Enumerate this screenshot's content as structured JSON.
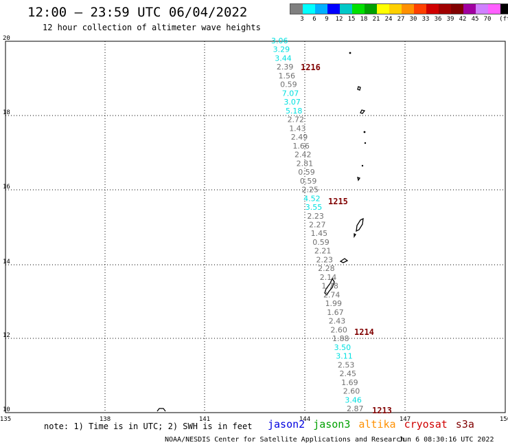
{
  "title": "12:00 – 23:59 UTC 06/04/2022",
  "subtitle": "12 hour collection of altimeter wave heights",
  "colorbar": {
    "colors": [
      "#808080",
      "#00ffff",
      "#00b0ff",
      "#0000ff",
      "#00c8c8",
      "#00e000",
      "#00a000",
      "#ffff00",
      "#ffd000",
      "#ff9000",
      "#ff4000",
      "#d00000",
      "#a00000",
      "#800000",
      "#a000a0",
      "#d080ff",
      "#ff60ff",
      "#000000"
    ],
    "labels": [
      "3",
      "6",
      "9",
      "12",
      "15",
      "18",
      "21",
      "24",
      "27",
      "30",
      "33",
      "36",
      "39",
      "42",
      "45",
      "70",
      "(ft)"
    ]
  },
  "axes": {
    "x_ticks": [
      "135",
      "138",
      "141",
      "144",
      "147",
      "150"
    ],
    "y_ticks": [
      "20",
      "18",
      "16",
      "14",
      "12",
      "10"
    ]
  },
  "track": {
    "swh_values": [
      {
        "v": "3.06",
        "c": "#00e0e0"
      },
      {
        "v": "3.29",
        "c": "#00e0e0"
      },
      {
        "v": "3.44",
        "c": "#00e0e0"
      },
      {
        "v": "2.39",
        "c": "#707070"
      },
      {
        "v": "1.56",
        "c": "#707070"
      },
      {
        "v": "0.59",
        "c": "#707070"
      },
      {
        "v": "7.07",
        "c": "#00e0e0"
      },
      {
        "v": "3.07",
        "c": "#00e0e0"
      },
      {
        "v": "5.18",
        "c": "#00e0e0"
      },
      {
        "v": "2.72",
        "c": "#707070"
      },
      {
        "v": "1.43",
        "c": "#707070"
      },
      {
        "v": "2.49",
        "c": "#707070"
      },
      {
        "v": "1.66",
        "c": "#707070"
      },
      {
        "v": "2.42",
        "c": "#707070"
      },
      {
        "v": "2.81",
        "c": "#707070"
      },
      {
        "v": "0.59",
        "c": "#707070"
      },
      {
        "v": "0.59",
        "c": "#707070"
      },
      {
        "v": "2.25",
        "c": "#707070"
      },
      {
        "v": "4.52",
        "c": "#00e0e0"
      },
      {
        "v": "3.55",
        "c": "#00e0e0"
      },
      {
        "v": "2.23",
        "c": "#707070"
      },
      {
        "v": "2.27",
        "c": "#707070"
      },
      {
        "v": "1.45",
        "c": "#707070"
      },
      {
        "v": "0.59",
        "c": "#707070"
      },
      {
        "v": "2.21",
        "c": "#707070"
      },
      {
        "v": "2.23",
        "c": "#707070"
      },
      {
        "v": "2.28",
        "c": "#707070"
      },
      {
        "v": "2.14",
        "c": "#707070"
      },
      {
        "v": "1.78",
        "c": "#707070"
      },
      {
        "v": "2.74",
        "c": "#707070"
      },
      {
        "v": "1.99",
        "c": "#707070"
      },
      {
        "v": "1.67",
        "c": "#707070"
      },
      {
        "v": "2.43",
        "c": "#707070"
      },
      {
        "v": "2.60",
        "c": "#707070"
      },
      {
        "v": "1.88",
        "c": "#707070"
      },
      {
        "v": "3.50",
        "c": "#00e0e0"
      },
      {
        "v": "3.11",
        "c": "#00e0e0"
      },
      {
        "v": "2.53",
        "c": "#707070"
      },
      {
        "v": "2.45",
        "c": "#707070"
      },
      {
        "v": "1.69",
        "c": "#707070"
      },
      {
        "v": "2.60",
        "c": "#707070"
      },
      {
        "v": "3.46",
        "c": "#00e0e0"
      },
      {
        "v": "2.87",
        "c": "#707070"
      }
    ],
    "time_labels": [
      "1216",
      "1215",
      "1214",
      "1213"
    ],
    "time_label_color": "#800000"
  },
  "note": "note: 1) Time is in UTC; 2) SWH is in feet",
  "satellites": [
    {
      "name": "jason2",
      "color": "#0000e0"
    },
    {
      "name": "jason3",
      "color": "#00a000"
    },
    {
      "name": "altika",
      "color": "#ff9000"
    },
    {
      "name": "cryosat",
      "color": "#d00000"
    },
    {
      "name": "s3a",
      "color": "#800000"
    }
  ],
  "credit": "NOAA/NESDIS Center for Satellite Applications and Research",
  "credit_time": "Jun  6 08:30:16 UTC 2022"
}
